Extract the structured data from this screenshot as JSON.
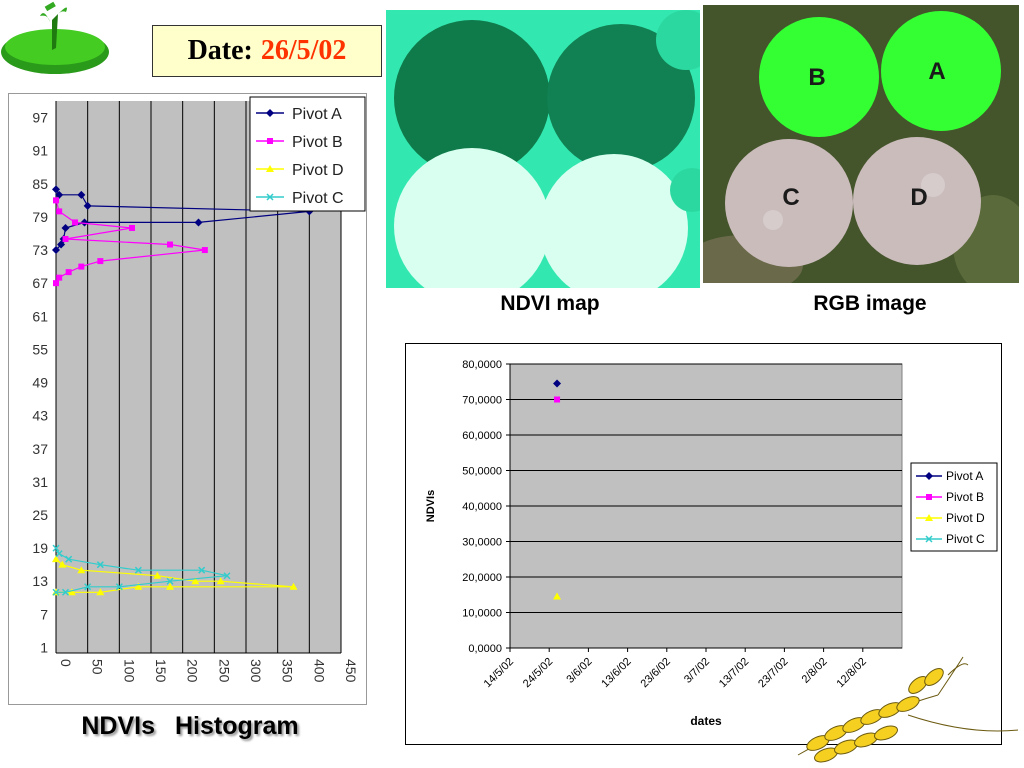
{
  "header": {
    "date_label": "Date:",
    "date_value": "26/5/02"
  },
  "captions": {
    "ndvi_map": "NDVI map",
    "rgb_image": "RGB image",
    "ndvis": "NDVIs",
    "histogram": "Histogram"
  },
  "rgb_labels": {
    "a": "A",
    "b": "B",
    "c": "C",
    "d": "D"
  },
  "colors": {
    "pivot_a": "#000080",
    "pivot_b": "#ff00ff",
    "pivot_d": "#ffff00",
    "pivot_c": "#33cccc",
    "plot_area": "#c0c0c0",
    "date_red": "#ff3300",
    "date_box": "#ffffcc"
  },
  "chart_data": [
    {
      "type": "line",
      "orientation": "horizontal",
      "title": "",
      "xlabel": "",
      "ylabel": "",
      "xlim": [
        0,
        450
      ],
      "ylim": [
        0,
        100
      ],
      "x_ticks": [
        "0",
        "50",
        "100",
        "150",
        "200",
        "250",
        "300",
        "350",
        "400",
        "450"
      ],
      "y_ticks": [
        "1",
        "7",
        "13",
        "19",
        "25",
        "31",
        "37",
        "43",
        "49",
        "55",
        "61",
        "67",
        "73",
        "79",
        "85",
        "91",
        "97"
      ],
      "grid": "vertical",
      "legend_position": "top-right",
      "series": [
        {
          "name": "Pivot A",
          "points": [
            [
              0,
              73
            ],
            [
              8,
              74
            ],
            [
              12,
              75
            ],
            [
              15,
              77
            ],
            [
              45,
              78
            ],
            [
              225,
              78
            ],
            [
              400,
              80
            ],
            [
              50,
              81
            ],
            [
              40,
              83
            ],
            [
              5,
              83
            ],
            [
              0,
              84
            ]
          ]
        },
        {
          "name": "Pivot B",
          "points": [
            [
              0,
              67
            ],
            [
              5,
              68
            ],
            [
              20,
              69
            ],
            [
              40,
              70
            ],
            [
              70,
              71
            ],
            [
              235,
              73
            ],
            [
              180,
              74
            ],
            [
              15,
              75
            ],
            [
              120,
              77
            ],
            [
              30,
              78
            ],
            [
              5,
              80
            ],
            [
              0,
              82
            ]
          ]
        },
        {
          "name": "Pivot D",
          "points": [
            [
              0,
              11
            ],
            [
              25,
              11
            ],
            [
              70,
              11
            ],
            [
              130,
              12
            ],
            [
              180,
              12
            ],
            [
              375,
              12
            ],
            [
              260,
              13
            ],
            [
              220,
              13
            ],
            [
              160,
              14
            ],
            [
              40,
              15
            ],
            [
              10,
              16
            ],
            [
              0,
              17
            ]
          ]
        },
        {
          "name": "Pivot C",
          "points": [
            [
              0,
              11
            ],
            [
              15,
              11
            ],
            [
              50,
              12
            ],
            [
              100,
              12
            ],
            [
              180,
              13
            ],
            [
              270,
              14
            ],
            [
              230,
              15
            ],
            [
              130,
              15
            ],
            [
              70,
              16
            ],
            [
              20,
              17
            ],
            [
              5,
              18
            ],
            [
              0,
              19
            ]
          ]
        }
      ]
    },
    {
      "type": "scatter",
      "title": "",
      "xlabel": "dates",
      "ylabel": "NDVIs",
      "x": [
        "14/5/02",
        "24/5/02",
        "3/6/02",
        "13/6/02",
        "23/6/02",
        "3/7/02",
        "13/7/02",
        "23/7/02",
        "2/8/02",
        "12/8/02"
      ],
      "ylim": [
        0,
        80
      ],
      "y_ticks": [
        "0,0000",
        "10,0000",
        "20,0000",
        "30,0000",
        "40,0000",
        "50,0000",
        "60,0000",
        "70,0000",
        "80,0000"
      ],
      "grid": "horizontal",
      "legend_position": "right",
      "series": [
        {
          "name": "Pivot A",
          "points": [
            [
              "26/5/02",
              74.5
            ]
          ]
        },
        {
          "name": "Pivot B",
          "points": [
            [
              "26/5/02",
              70.0
            ]
          ]
        },
        {
          "name": "Pivot D",
          "points": [
            [
              "26/5/02",
              14.5
            ]
          ]
        },
        {
          "name": "Pivot C",
          "points": []
        }
      ]
    }
  ]
}
